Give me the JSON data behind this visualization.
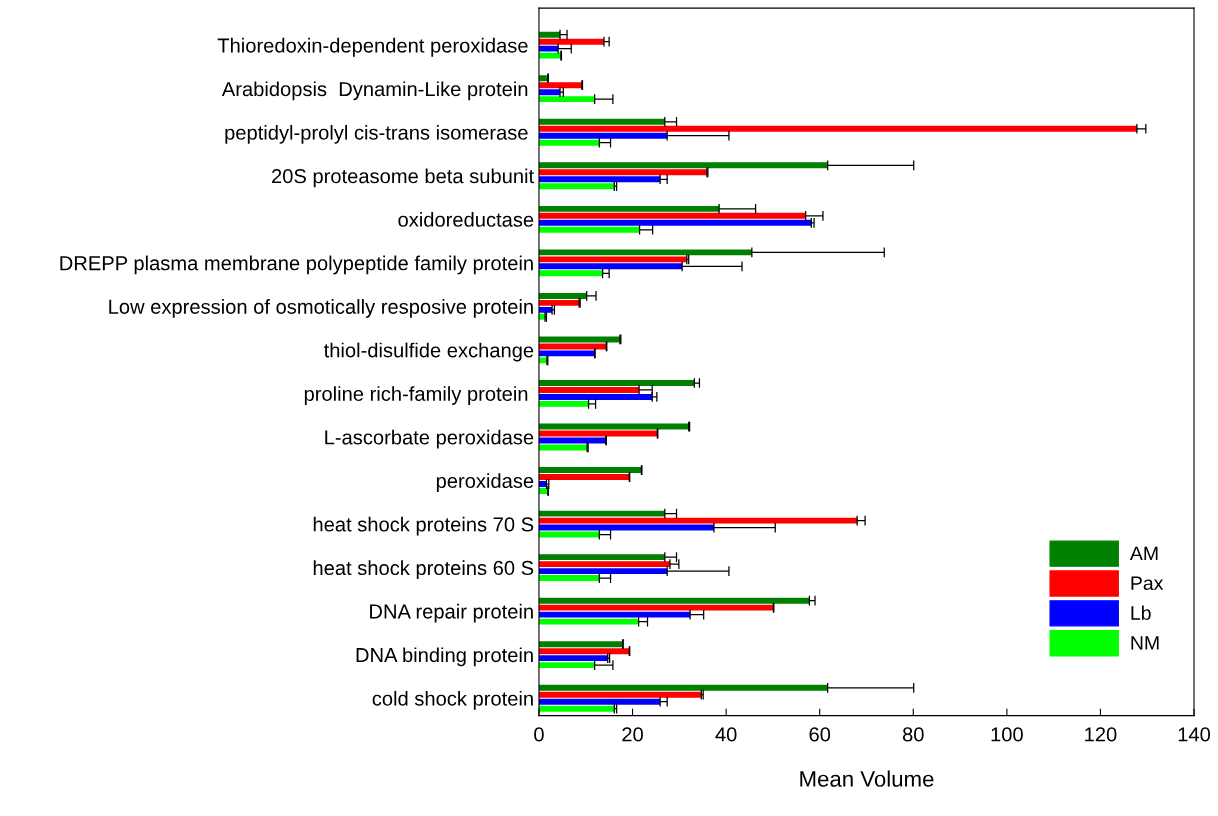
{
  "chart_data": {
    "type": "bar",
    "orientation": "horizontal",
    "xlabel": "Mean Volume",
    "categories": [
      "Thioredoxin-dependent peroxidase ",
      "Arabidopsis  Dynamin-Like protein ",
      "peptidyl-prolyl cis-trans isomerase ",
      "20S proteasome beta subunit",
      "oxidoreductase",
      "DREPP plasma membrane polypeptide family protein",
      "Low expression of osmotically resposive protein",
      "thiol-disulfide exchange",
      "proline rich-family protein ",
      "L-ascorbate peroxidase",
      "peroxidase",
      "heat shock proteins 70 S",
      "heat shock proteins 60 S",
      "DNA repair protein",
      "DNA binding protein",
      "cold shock protein"
    ],
    "series": [
      {
        "name": "AM",
        "color": "#008000",
        "values": [
          4.5,
          1.9,
          26.9,
          61.7,
          38.5,
          45.5,
          10.2,
          17.3,
          33.2,
          32.0,
          21.9,
          26.9,
          26.9,
          57.8,
          17.9,
          61.7
        ],
        "errors": [
          [
            4.5,
            6.0
          ],
          [
            1.9,
            2.0
          ],
          [
            26.9,
            29.4
          ],
          [
            61.7,
            80.1
          ],
          [
            38.5,
            46.3
          ],
          [
            45.5,
            73.8
          ],
          [
            10.2,
            12.2
          ],
          [
            17.3,
            17.5
          ],
          [
            33.2,
            34.3
          ],
          [
            32.0,
            32.2
          ],
          [
            21.9,
            22.0
          ],
          [
            26.9,
            29.4
          ],
          [
            26.9,
            29.4
          ],
          [
            57.8,
            59.0
          ],
          [
            17.9,
            18.0
          ],
          [
            61.7,
            80.1
          ]
        ]
      },
      {
        "name": "Pax",
        "color": "#ff0000",
        "values": [
          13.9,
          9.2,
          127.8,
          35.9,
          57.0,
          31.6,
          8.6,
          14.4,
          21.4,
          25.3,
          19.3,
          68.0,
          28.0,
          50.1,
          19.3,
          34.7
        ],
        "errors": [
          [
            13.9,
            15.0
          ],
          [
            9.2,
            9.3
          ],
          [
            127.8,
            129.7
          ],
          [
            35.9,
            36.1
          ],
          [
            57.0,
            60.7
          ],
          [
            31.6,
            32.0
          ],
          [
            8.6,
            8.8
          ],
          [
            14.4,
            14.5
          ],
          [
            21.4,
            24.2
          ],
          [
            25.3,
            25.4
          ],
          [
            19.3,
            19.4
          ],
          [
            68.0,
            69.7
          ],
          [
            28.0,
            29.9
          ],
          [
            50.1,
            50.2
          ],
          [
            19.3,
            19.4
          ],
          [
            34.7,
            35.1
          ]
        ]
      },
      {
        "name": "Lb",
        "color": "#0000ff",
        "values": [
          4.1,
          4.5,
          27.4,
          25.9,
          58.2,
          30.6,
          2.8,
          11.9,
          24.2,
          14.3,
          1.6,
          37.4,
          27.4,
          32.3,
          14.7,
          25.9
        ],
        "errors": [
          [
            4.1,
            6.9
          ],
          [
            4.5,
            5.2
          ],
          [
            27.4,
            40.6
          ],
          [
            25.9,
            27.4
          ],
          [
            58.2,
            58.8
          ],
          [
            30.6,
            43.4
          ],
          [
            2.8,
            3.3
          ],
          [
            11.9,
            12.0
          ],
          [
            24.2,
            25.2
          ],
          [
            14.3,
            14.4
          ],
          [
            1.6,
            2.1
          ],
          [
            37.4,
            50.5
          ],
          [
            27.4,
            40.6
          ],
          [
            32.3,
            35.2
          ],
          [
            14.7,
            15.1
          ],
          [
            25.9,
            27.4
          ]
        ]
      },
      {
        "name": "NM",
        "color": "#00ff00",
        "values": [
          4.7,
          11.9,
          12.9,
          16.1,
          21.5,
          13.6,
          1.3,
          1.7,
          10.6,
          10.3,
          1.9,
          12.9,
          12.9,
          21.3,
          11.9,
          16.1
        ],
        "errors": [
          [
            4.7,
            4.8
          ],
          [
            11.9,
            15.8
          ],
          [
            12.9,
            15.3
          ],
          [
            16.1,
            16.6
          ],
          [
            21.5,
            24.3
          ],
          [
            13.6,
            15.0
          ],
          [
            1.3,
            1.6
          ],
          [
            1.7,
            1.9
          ],
          [
            10.6,
            12.1
          ],
          [
            10.3,
            10.5
          ],
          [
            1.9,
            2.0
          ],
          [
            12.9,
            15.3
          ],
          [
            12.9,
            15.3
          ],
          [
            21.3,
            23.2
          ],
          [
            11.9,
            15.8
          ],
          [
            16.1,
            16.6
          ]
        ]
      }
    ],
    "xlim": [
      0,
      140
    ],
    "xticks": [
      0,
      20,
      40,
      60,
      80,
      100,
      120,
      140
    ],
    "grid": false,
    "legend": "bottom right"
  }
}
